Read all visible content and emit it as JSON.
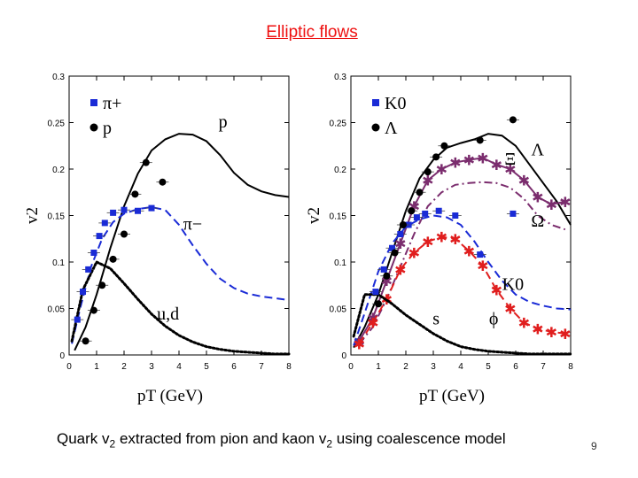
{
  "slide": {
    "title": "Elliptic flows",
    "caption_pre": "Quark v",
    "caption_sub1": "2",
    "caption_mid": " extracted from pion and kaon v",
    "caption_sub2": "2",
    "caption_post": " using coalescence model",
    "page_number": "9"
  },
  "colors": {
    "black": "#000000",
    "blue": "#1a2bd6",
    "purple": "#7b2d6e",
    "red": "#e01e1e"
  },
  "chart_data": [
    {
      "type": "scatter",
      "panel": "left",
      "xlim": [
        0,
        8
      ],
      "ylim": [
        0,
        0.3
      ],
      "xticks": [
        "0",
        "1",
        "2",
        "3",
        "4",
        "5",
        "6",
        "7",
        "8"
      ],
      "yticks": [
        "0",
        "0.05",
        "0.1",
        "0.15",
        "0.2",
        "0.25",
        "0.3"
      ],
      "xlabel": "pT (GeV)",
      "ylabel": "v2",
      "legend": [
        {
          "label": "π+",
          "marker": "square",
          "color": "blue"
        },
        {
          "label": "p",
          "marker": "circle",
          "color": "black"
        }
      ],
      "annotations": [
        {
          "text": "p",
          "x": 5.6,
          "y": 0.245
        },
        {
          "text": "π−",
          "x": 4.5,
          "y": 0.135
        },
        {
          "text": "u,d",
          "x": 3.6,
          "y": 0.038
        }
      ],
      "points": [
        {
          "name": "pi-plus",
          "color": "blue",
          "marker": "square",
          "x": [
            0.3,
            0.5,
            0.7,
            0.9,
            1.1,
            1.3,
            1.6,
            2.0,
            2.5,
            3.0
          ],
          "y": [
            0.038,
            0.068,
            0.092,
            0.11,
            0.128,
            0.142,
            0.153,
            0.156,
            0.155,
            0.158
          ]
        },
        {
          "name": "proton",
          "color": "black",
          "marker": "circle",
          "x": [
            0.6,
            0.9,
            1.2,
            1.6,
            2.0,
            2.4,
            2.8,
            3.4
          ],
          "y": [
            0.015,
            0.048,
            0.075,
            0.103,
            0.13,
            0.173,
            0.207,
            0.186
          ]
        }
      ],
      "curves": [
        {
          "name": "p-curve",
          "color": "black",
          "style": "solid",
          "x": [
            0.2,
            0.6,
            1.0,
            1.5,
            2.0,
            2.5,
            3.0,
            3.5,
            4.0,
            4.5,
            5.0,
            5.5,
            6.0,
            6.5,
            7.0,
            7.5,
            8.0
          ],
          "y": [
            0.005,
            0.03,
            0.065,
            0.115,
            0.16,
            0.195,
            0.22,
            0.232,
            0.238,
            0.237,
            0.23,
            0.215,
            0.196,
            0.183,
            0.176,
            0.172,
            0.17
          ]
        },
        {
          "name": "pi-curve",
          "color": "blue",
          "style": "dashed",
          "x": [
            0.1,
            0.4,
            0.8,
            1.2,
            1.6,
            2.0,
            2.5,
            3.0,
            3.5,
            4.0,
            4.5,
            5.0,
            5.5,
            6.0,
            6.5,
            7.0,
            7.5,
            8.0
          ],
          "y": [
            0.012,
            0.05,
            0.095,
            0.125,
            0.143,
            0.152,
            0.157,
            0.159,
            0.156,
            0.14,
            0.118,
            0.098,
            0.082,
            0.072,
            0.066,
            0.063,
            0.061,
            0.059
          ]
        },
        {
          "name": "ud-curve",
          "color": "black",
          "style": "dotted",
          "x": [
            0.1,
            0.5,
            1.0,
            1.5,
            2.0,
            2.5,
            3.0,
            3.5,
            4.0,
            4.5,
            5.0,
            5.5,
            6.0,
            6.5,
            7.0,
            7.5,
            8.0
          ],
          "y": [
            0.015,
            0.07,
            0.1,
            0.093,
            0.077,
            0.06,
            0.044,
            0.031,
            0.021,
            0.014,
            0.009,
            0.006,
            0.004,
            0.003,
            0.002,
            0.001,
            0.001
          ]
        }
      ]
    },
    {
      "type": "scatter",
      "panel": "right",
      "xlim": [
        0,
        8
      ],
      "ylim": [
        0,
        0.3
      ],
      "xticks": [
        "0",
        "1",
        "2",
        "3",
        "4",
        "5",
        "6",
        "7",
        "8"
      ],
      "yticks": [
        "0",
        "0.05",
        "0.1",
        "0.15",
        "0.2",
        "0.25",
        "0.3"
      ],
      "xlabel": "pT (GeV)",
      "ylabel": "v2",
      "legend": [
        {
          "label": "K0",
          "marker": "square",
          "color": "blue"
        },
        {
          "label": "Λ",
          "marker": "circle",
          "color": "black"
        }
      ],
      "annotations": [
        {
          "text": "Ξ",
          "x": 5.8,
          "y": 0.205
        },
        {
          "text": "Λ",
          "x": 6.8,
          "y": 0.215
        },
        {
          "text": "Ω",
          "x": 6.8,
          "y": 0.138
        },
        {
          "text": "K0",
          "x": 5.9,
          "y": 0.07
        },
        {
          "text": "s",
          "x": 3.1,
          "y": 0.033
        },
        {
          "text": "ϕ",
          "x": 5.2,
          "y": 0.033
        }
      ],
      "points": [
        {
          "name": "k0",
          "color": "blue",
          "marker": "square",
          "x": [
            0.9,
            1.2,
            1.5,
            1.8,
            2.1,
            2.4,
            2.7,
            3.2,
            3.8,
            4.7,
            5.9
          ],
          "y": [
            0.068,
            0.092,
            0.115,
            0.13,
            0.14,
            0.148,
            0.152,
            0.155,
            0.15,
            0.108,
            0.152
          ]
        },
        {
          "name": "lambda",
          "color": "black",
          "marker": "circle",
          "x": [
            1.0,
            1.3,
            1.6,
            1.9,
            2.2,
            2.5,
            2.8,
            3.1,
            3.4,
            4.7,
            5.9
          ],
          "y": [
            0.055,
            0.085,
            0.11,
            0.14,
            0.155,
            0.175,
            0.197,
            0.213,
            0.225,
            0.231,
            0.253
          ]
        }
      ],
      "curves": [
        {
          "name": "lambda-curve",
          "color": "black",
          "style": "solid",
          "x": [
            0.1,
            0.5,
            1.0,
            1.5,
            2.0,
            2.5,
            3.0,
            3.5,
            4.0,
            4.5,
            5.0,
            5.5,
            6.0,
            6.5,
            7.0,
            7.5,
            8.0
          ],
          "y": [
            0.008,
            0.03,
            0.065,
            0.11,
            0.155,
            0.19,
            0.21,
            0.223,
            0.228,
            0.232,
            0.238,
            0.236,
            0.225,
            0.205,
            0.185,
            0.165,
            0.14
          ]
        },
        {
          "name": "xi-curve",
          "color": "purple",
          "style": "solid-star",
          "x": [
            0.3,
            0.8,
            1.3,
            1.8,
            2.3,
            2.8,
            3.3,
            3.8,
            4.3,
            4.8,
            5.3,
            5.8,
            6.3,
            6.8,
            7.3,
            7.8
          ],
          "y": [
            0.015,
            0.04,
            0.08,
            0.12,
            0.16,
            0.188,
            0.2,
            0.207,
            0.21,
            0.212,
            0.205,
            0.2,
            0.188,
            0.17,
            0.162,
            0.165
          ]
        },
        {
          "name": "omega-curve",
          "color": "purple",
          "style": "dashdot",
          "x": [
            0.3,
            0.8,
            1.3,
            1.8,
            2.3,
            2.8,
            3.3,
            3.8,
            4.3,
            4.8,
            5.3,
            5.8,
            6.3,
            6.8,
            7.3,
            7.8
          ],
          "y": [
            0.012,
            0.03,
            0.06,
            0.095,
            0.13,
            0.16,
            0.175,
            0.183,
            0.185,
            0.186,
            0.185,
            0.18,
            0.168,
            0.15,
            0.14,
            0.135
          ]
        },
        {
          "name": "k0-curve",
          "color": "blue",
          "style": "dashed",
          "x": [
            0.1,
            0.5,
            1.0,
            1.5,
            2.0,
            2.5,
            3.0,
            3.5,
            4.0,
            4.5,
            5.0,
            5.5,
            6.0,
            6.5,
            7.0,
            7.5,
            8.0
          ],
          "y": [
            0.01,
            0.045,
            0.09,
            0.12,
            0.138,
            0.146,
            0.15,
            0.148,
            0.14,
            0.122,
            0.1,
            0.08,
            0.065,
            0.057,
            0.053,
            0.05,
            0.049
          ]
        },
        {
          "name": "phi-curve",
          "color": "red",
          "style": "dashed-star",
          "x": [
            0.3,
            0.8,
            1.3,
            1.8,
            2.3,
            2.8,
            3.3,
            3.8,
            4.3,
            4.8,
            5.3,
            5.8,
            6.3,
            6.8,
            7.3,
            7.8
          ],
          "y": [
            0.012,
            0.035,
            0.06,
            0.092,
            0.11,
            0.122,
            0.127,
            0.125,
            0.112,
            0.096,
            0.07,
            0.05,
            0.035,
            0.028,
            0.025,
            0.023
          ]
        },
        {
          "name": "s-curve",
          "color": "black",
          "style": "dotted",
          "x": [
            0.1,
            0.5,
            1.0,
            1.5,
            2.0,
            2.5,
            3.0,
            3.5,
            4.0,
            4.5,
            5.0,
            5.5,
            6.0,
            6.5,
            7.0,
            7.5,
            8.0
          ],
          "y": [
            0.02,
            0.065,
            0.065,
            0.055,
            0.043,
            0.033,
            0.023,
            0.015,
            0.009,
            0.006,
            0.004,
            0.003,
            0.002,
            0.001,
            0.001,
            0.001,
            0.001
          ]
        }
      ]
    }
  ]
}
